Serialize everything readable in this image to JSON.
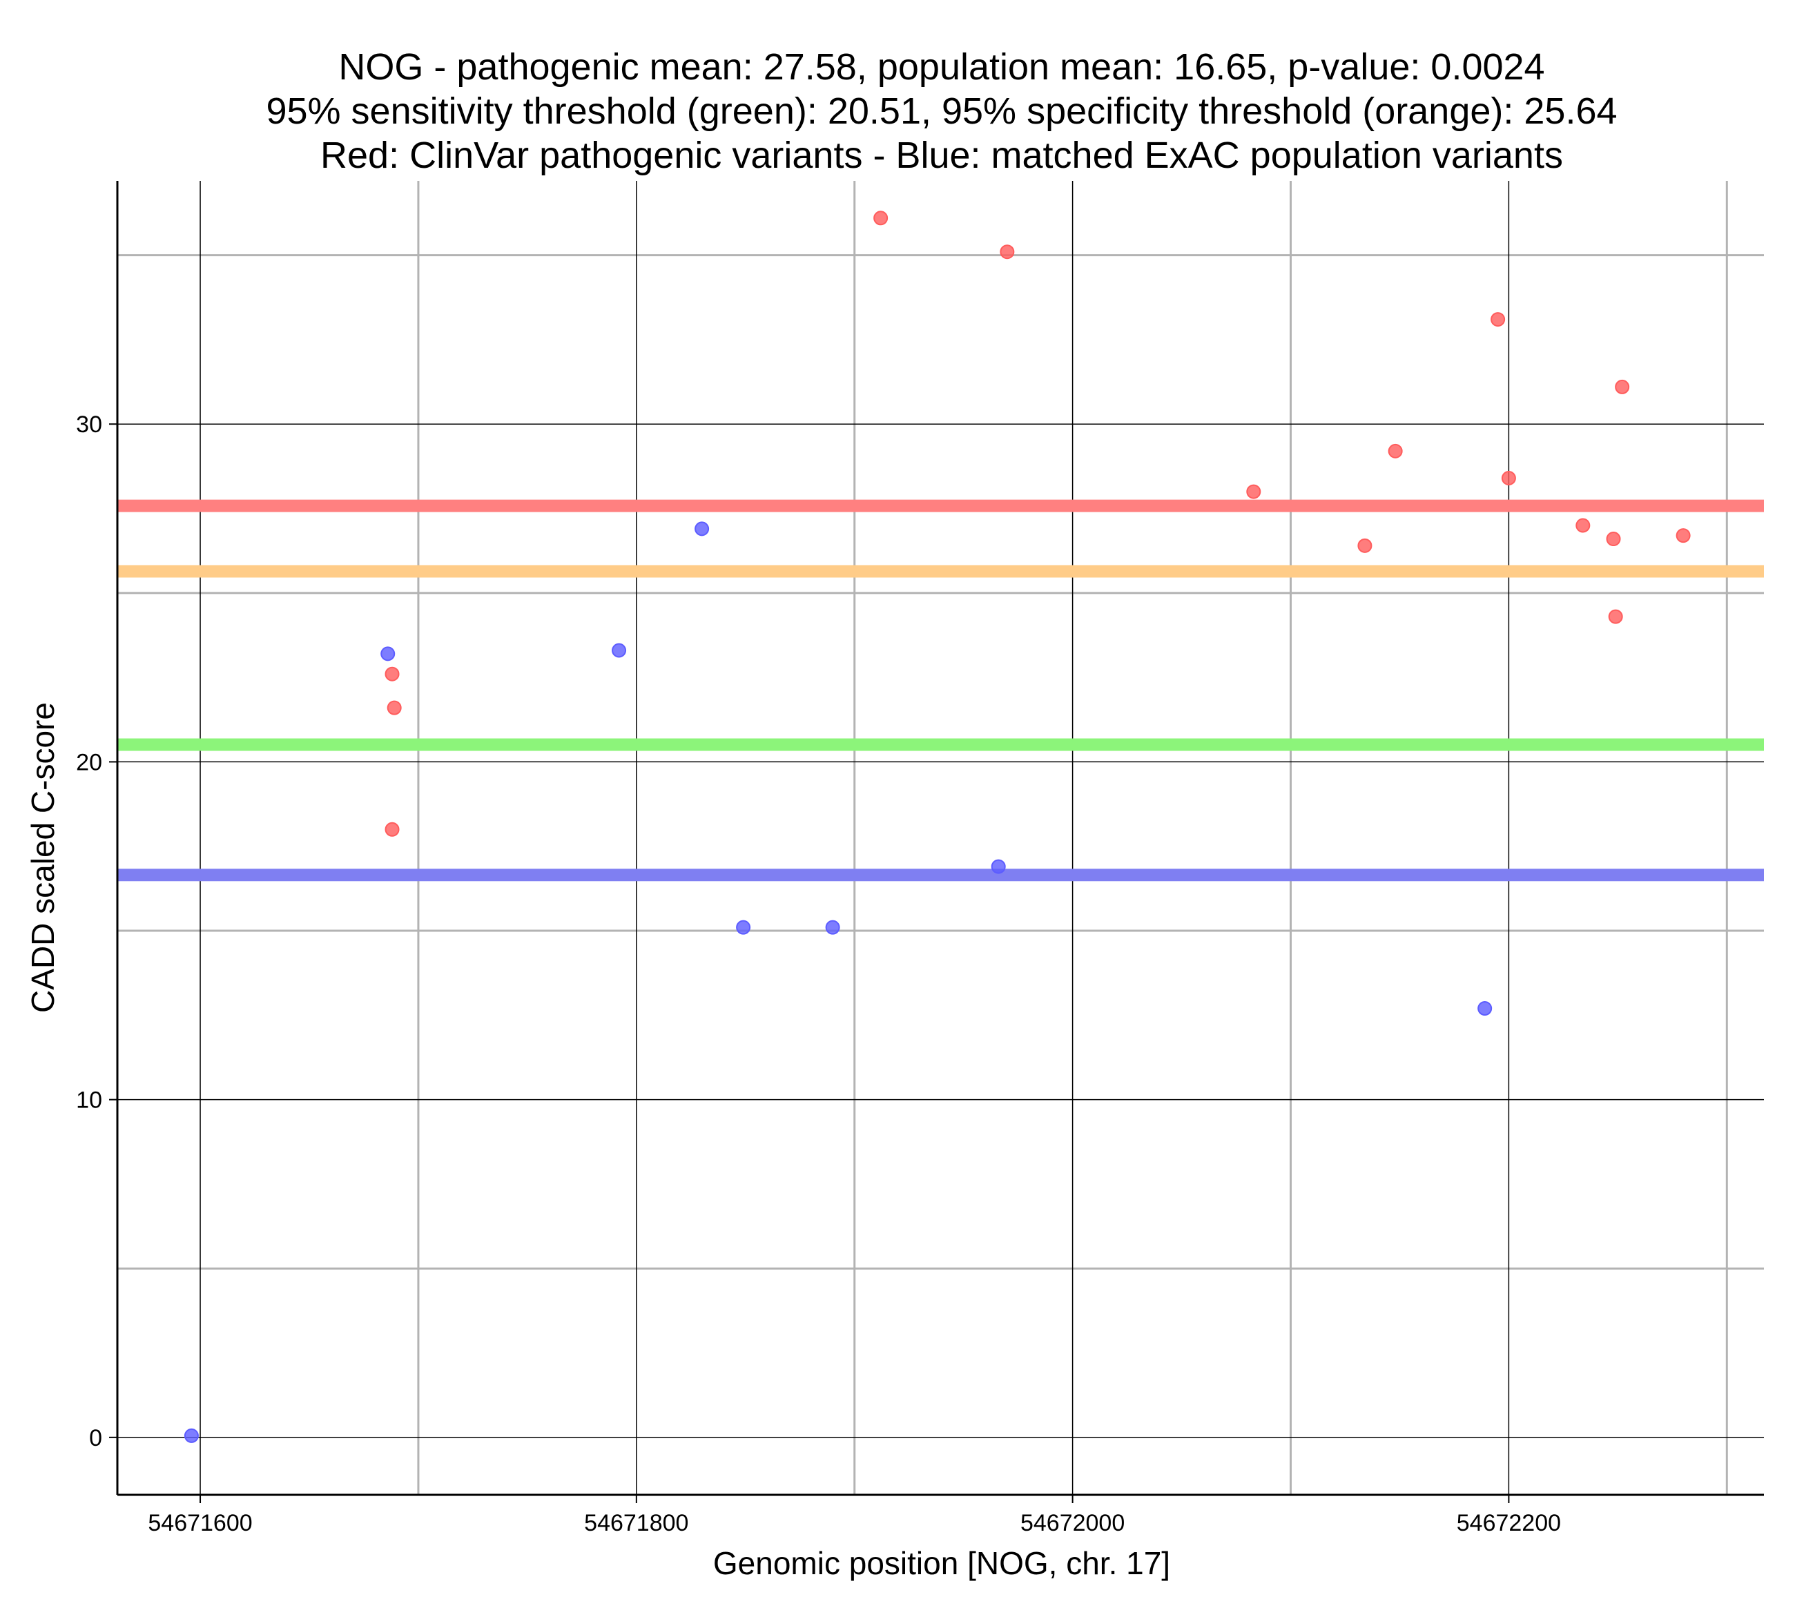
{
  "chart_data": {
    "type": "scatter",
    "title_lines": [
      "NOG - pathogenic mean: 27.58, population mean: 16.65, p-value: 0.0024",
      "95% sensitivity threshold (green): 20.51, 95% specificity threshold (orange): 25.64",
      "Red: ClinVar pathogenic variants - Blue: matched ExAC population variants"
    ],
    "xlabel": "Genomic position [NOG, chr. 17]",
    "ylabel": "CADD scaled C-score",
    "xlim": [
      54671562,
      54672317
    ],
    "ylim": [
      -1.7,
      37.2
    ],
    "x_ticks": [
      {
        "value": 54671600,
        "label": "54671600"
      },
      {
        "value": 54671800,
        "label": "54671800"
      },
      {
        "value": 54672000,
        "label": "54672000"
      },
      {
        "value": 54672200,
        "label": "54672200"
      }
    ],
    "x_minor_ticks": [
      54671700,
      54671900,
      54672100,
      54672300
    ],
    "y_ticks": [
      {
        "value": 0,
        "label": "0"
      },
      {
        "value": 10,
        "label": "10"
      },
      {
        "value": 20,
        "label": "20"
      },
      {
        "value": 30,
        "label": "30"
      }
    ],
    "y_minor_ticks": [
      5,
      15,
      25,
      35
    ],
    "hlines": [
      {
        "name": "pathogenic mean",
        "value": 27.58,
        "color": "#ff8080"
      },
      {
        "name": "95% specificity threshold",
        "value": 25.64,
        "color": "#ffcc88"
      },
      {
        "name": "95% sensitivity threshold",
        "value": 20.51,
        "color": "#8cf47a"
      },
      {
        "name": "population mean",
        "value": 16.65,
        "color": "#7f7ff2"
      }
    ],
    "series": [
      {
        "name": "ClinVar pathogenic variants",
        "color": "#ff5c5c",
        "points": [
          {
            "x": 54671688,
            "y": 22.6
          },
          {
            "x": 54671689,
            "y": 21.6
          },
          {
            "x": 54671688,
            "y": 18.0
          },
          {
            "x": 54671912,
            "y": 36.1
          },
          {
            "x": 54671970,
            "y": 35.1
          },
          {
            "x": 54672083,
            "y": 28.0
          },
          {
            "x": 54672134,
            "y": 26.4
          },
          {
            "x": 54672148,
            "y": 29.2
          },
          {
            "x": 54672195,
            "y": 33.1
          },
          {
            "x": 54672200,
            "y": 28.4
          },
          {
            "x": 54672234,
            "y": 27.0
          },
          {
            "x": 54672248,
            "y": 26.6
          },
          {
            "x": 54672249,
            "y": 24.3
          },
          {
            "x": 54672252,
            "y": 31.1
          },
          {
            "x": 54672280,
            "y": 26.7
          }
        ]
      },
      {
        "name": "matched ExAC population variants",
        "color": "#5c5cff",
        "points": [
          {
            "x": 54671596,
            "y": 0.05
          },
          {
            "x": 54671686,
            "y": 23.2
          },
          {
            "x": 54671792,
            "y": 23.3
          },
          {
            "x": 54671830,
            "y": 26.9
          },
          {
            "x": 54671849,
            "y": 15.1
          },
          {
            "x": 54671890,
            "y": 15.1
          },
          {
            "x": 54671966,
            "y": 16.9
          },
          {
            "x": 54672189,
            "y": 12.7
          }
        ]
      }
    ]
  }
}
